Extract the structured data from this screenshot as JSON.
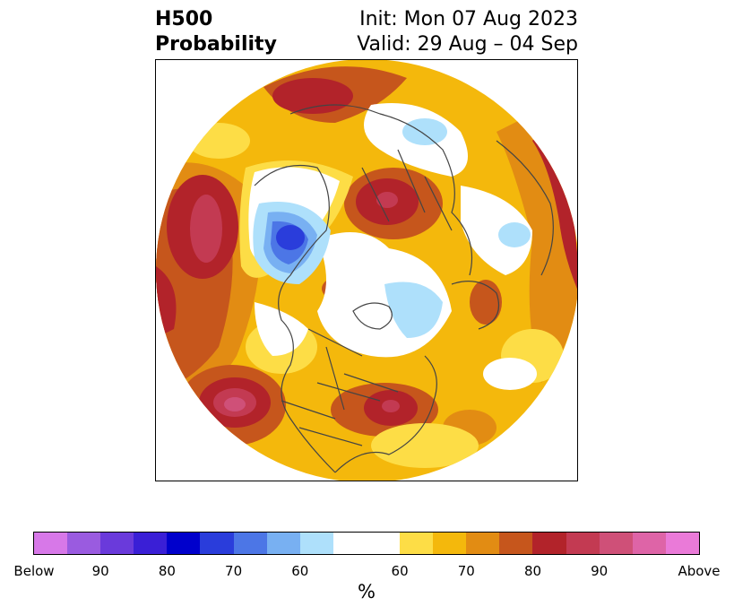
{
  "header": {
    "title_line1": "H500",
    "title_line2": "Probability",
    "init_text": "Init: Mon 07 Aug 2023",
    "valid_text": "Valid: 29 Aug – 04 Sep"
  },
  "map": {
    "projection": "north-polar-stereographic",
    "features": [
      "coastlines",
      "country-borders",
      "us-state-borders"
    ]
  },
  "colorbar": {
    "unit": "%",
    "tick_labels": [
      "Below",
      "90",
      "80",
      "70",
      "60",
      "60",
      "70",
      "80",
      "90",
      "Above"
    ],
    "below_colors": [
      "#d778e8",
      "#9a5be0",
      "#6a3adb",
      "#3a1fd6",
      "#0000cc",
      "#2a3ddb",
      "#4c76e6",
      "#78b0f2",
      "#aee0fb"
    ],
    "neutral_color": "#ffffff",
    "above_colors": [
      "#fddd46",
      "#f4b80c",
      "#e28c13",
      "#c6561c",
      "#b2232a",
      "#c33a52",
      "#cf5078",
      "#de64a7",
      "#ea7ad8"
    ]
  }
}
